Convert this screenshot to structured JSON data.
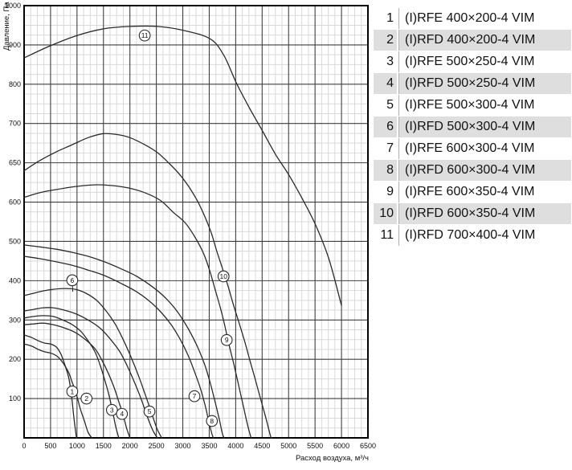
{
  "colors": {
    "curve": "#2b2b2b",
    "grid_major": "#3f3f3f",
    "grid_minor": "#d9d9d9",
    "axis_border": "#000000",
    "legend_alt_row": "#dedede",
    "legend_divider": "#b0b0b0",
    "text": "#111111",
    "marker_fill": "#ffffff"
  },
  "chart_data": {
    "type": "line",
    "title": "",
    "xlabel": "Расход воздуха, м³/ч",
    "ylabel": "Давление, Па",
    "xlim": [
      0,
      6500
    ],
    "x_ticks": [
      0,
      500,
      1000,
      1500,
      2000,
      2500,
      3000,
      3500,
      4000,
      4500,
      5000,
      5500,
      6000,
      6500
    ],
    "y_ticks": [
      1000,
      900,
      800,
      700,
      650,
      600,
      500,
      400,
      300,
      200,
      100,
      0
    ],
    "y_tick_labels_shown": [
      1000,
      900,
      800,
      700,
      650,
      600,
      500,
      400,
      300,
      200,
      100
    ],
    "grid": "major+minor, 3 minor lines between majors on both axes",
    "legend_position": "right table",
    "series": [
      {
        "id": 1,
        "model": "(I)RFE 400×200-4 VIM",
        "marker": "1",
        "marker_at": [
          910,
          118
        ],
        "points": [
          [
            0,
            262
          ],
          [
            150,
            255
          ],
          [
            270,
            247
          ],
          [
            390,
            241
          ],
          [
            500,
            239
          ],
          [
            610,
            231
          ],
          [
            700,
            212
          ],
          [
            770,
            186
          ],
          [
            840,
            155
          ],
          [
            880,
            124
          ],
          [
            910,
            92
          ],
          [
            940,
            53
          ],
          [
            970,
            20
          ],
          [
            990,
            0
          ]
        ]
      },
      {
        "id": 2,
        "model": "(I)RFD 400×200-4 VIM",
        "marker": "2",
        "marker_at": [
          1180,
          100
        ],
        "points": [
          [
            0,
            239
          ],
          [
            150,
            233
          ],
          [
            270,
            225
          ],
          [
            390,
            219
          ],
          [
            520,
            215
          ],
          [
            640,
            206
          ],
          [
            740,
            190
          ],
          [
            840,
            167
          ],
          [
            910,
            141
          ],
          [
            990,
            110
          ],
          [
            1060,
            75
          ],
          [
            1140,
            43
          ],
          [
            1210,
            14
          ],
          [
            1280,
            0
          ]
        ]
      },
      {
        "id": 3,
        "model": "(I)RFE 500×250-4 VIM",
        "marker": "3",
        "marker_at": [
          1660,
          71
        ],
        "points": [
          [
            0,
            305
          ],
          [
            180,
            309
          ],
          [
            360,
            311
          ],
          [
            550,
            309
          ],
          [
            730,
            300
          ],
          [
            910,
            288
          ],
          [
            1080,
            270
          ],
          [
            1210,
            247
          ],
          [
            1340,
            219
          ],
          [
            1440,
            184
          ],
          [
            1530,
            145
          ],
          [
            1610,
            106
          ],
          [
            1670,
            69
          ],
          [
            1730,
            30
          ],
          [
            1790,
            0
          ]
        ]
      },
      {
        "id": 4,
        "model": "(I)RFD 500×250-4 VIM",
        "marker": "4",
        "marker_at": [
          1850,
          61
        ],
        "points": [
          [
            0,
            288
          ],
          [
            180,
            290
          ],
          [
            360,
            292
          ],
          [
            550,
            288
          ],
          [
            760,
            280
          ],
          [
            970,
            268
          ],
          [
            1170,
            249
          ],
          [
            1340,
            227
          ],
          [
            1470,
            198
          ],
          [
            1590,
            165
          ],
          [
            1700,
            129
          ],
          [
            1790,
            92
          ],
          [
            1870,
            59
          ],
          [
            1940,
            24
          ],
          [
            2000,
            0
          ]
        ]
      },
      {
        "id": 5,
        "model": "(I)RFE 500×300-4 VIM",
        "marker": "5",
        "marker_at": [
          2370,
          67
        ],
        "points": [
          [
            0,
            323
          ],
          [
            180,
            327
          ],
          [
            360,
            331
          ],
          [
            550,
            331
          ],
          [
            760,
            325
          ],
          [
            990,
            315
          ],
          [
            1210,
            300
          ],
          [
            1430,
            280
          ],
          [
            1620,
            253
          ],
          [
            1810,
            219
          ],
          [
            1960,
            180
          ],
          [
            2100,
            137
          ],
          [
            2220,
            96
          ],
          [
            2320,
            57
          ],
          [
            2430,
            20
          ],
          [
            2520,
            0
          ]
        ]
      },
      {
        "id": 6,
        "model": "(I)RFD 500×300-4 VIM",
        "marker": "6",
        "marker_at": [
          910,
          401
        ],
        "leader_to": [
          920,
          372
        ],
        "points": [
          [
            0,
            362
          ],
          [
            180,
            368
          ],
          [
            360,
            374
          ],
          [
            550,
            378
          ],
          [
            760,
            380
          ],
          [
            970,
            378
          ],
          [
            1170,
            368
          ],
          [
            1370,
            350
          ],
          [
            1550,
            323
          ],
          [
            1720,
            290
          ],
          [
            1870,
            251
          ],
          [
            2020,
            206
          ],
          [
            2160,
            159
          ],
          [
            2280,
            114
          ],
          [
            2400,
            67
          ],
          [
            2510,
            24
          ],
          [
            2600,
            0
          ]
        ]
      },
      {
        "id": 7,
        "model": "(I)RFE 600×300-4 VIM",
        "marker": "7",
        "marker_at": [
          3220,
          106
        ],
        "points": [
          [
            0,
            462
          ],
          [
            300,
            456
          ],
          [
            610,
            448
          ],
          [
            910,
            439
          ],
          [
            1210,
            427
          ],
          [
            1520,
            413
          ],
          [
            1820,
            394
          ],
          [
            2100,
            374
          ],
          [
            2350,
            350
          ],
          [
            2580,
            321
          ],
          [
            2780,
            288
          ],
          [
            2950,
            251
          ],
          [
            3100,
            210
          ],
          [
            3220,
            169
          ],
          [
            3330,
            127
          ],
          [
            3420,
            84
          ],
          [
            3490,
            43
          ],
          [
            3550,
            10
          ],
          [
            3580,
            0
          ]
        ]
      },
      {
        "id": 8,
        "model": "(I)RFD 600×300-4 VIM",
        "marker": "8",
        "marker_at": [
          3550,
          43
        ],
        "points": [
          [
            0,
            491
          ],
          [
            300,
            486
          ],
          [
            610,
            480
          ],
          [
            910,
            472
          ],
          [
            1210,
            462
          ],
          [
            1520,
            448
          ],
          [
            1820,
            431
          ],
          [
            2130,
            411
          ],
          [
            2430,
            384
          ],
          [
            2690,
            354
          ],
          [
            2920,
            317
          ],
          [
            3110,
            276
          ],
          [
            3280,
            231
          ],
          [
            3420,
            184
          ],
          [
            3520,
            139
          ],
          [
            3610,
            92
          ],
          [
            3690,
            47
          ],
          [
            3750,
            10
          ],
          [
            3780,
            0
          ]
        ]
      },
      {
        "id": 9,
        "model": "(I)RFE 600×350-4 VIM",
        "marker": "9",
        "marker_at": [
          3830,
          249
        ],
        "points": [
          [
            0,
            606
          ],
          [
            300,
            612
          ],
          [
            610,
            616
          ],
          [
            990,
            620
          ],
          [
            1370,
            622
          ],
          [
            1670,
            621
          ],
          [
            1970,
            618
          ],
          [
            2280,
            612
          ],
          [
            2580,
            602
          ],
          [
            2820,
            574
          ],
          [
            3040,
            548
          ],
          [
            3230,
            511
          ],
          [
            3390,
            470
          ],
          [
            3510,
            425
          ],
          [
            3610,
            378
          ],
          [
            3710,
            331
          ],
          [
            3800,
            282
          ],
          [
            3870,
            239
          ],
          [
            3960,
            190
          ],
          [
            4050,
            137
          ],
          [
            4150,
            77
          ],
          [
            4230,
            30
          ],
          [
            4290,
            0
          ]
        ]
      },
      {
        "id": 10,
        "model": "(I)RFD 600×350-4 VIM",
        "marker": "10",
        "marker_at": [
          3770,
          411
        ],
        "points": [
          [
            0,
            640
          ],
          [
            300,
            653
          ],
          [
            610,
            664
          ],
          [
            910,
            673
          ],
          [
            1210,
            682
          ],
          [
            1490,
            687
          ],
          [
            1750,
            686
          ],
          [
            2000,
            682
          ],
          [
            2280,
            673
          ],
          [
            2520,
            663
          ],
          [
            2730,
            650
          ],
          [
            2930,
            636
          ],
          [
            3110,
            620
          ],
          [
            3280,
            601
          ],
          [
            3420,
            562
          ],
          [
            3540,
            521
          ],
          [
            3640,
            476
          ],
          [
            3750,
            431
          ],
          [
            3860,
            384
          ],
          [
            3960,
            337
          ],
          [
            4070,
            290
          ],
          [
            4180,
            241
          ],
          [
            4270,
            196
          ],
          [
            4370,
            149
          ],
          [
            4460,
            104
          ],
          [
            4570,
            51
          ],
          [
            4660,
            4
          ],
          [
            4680,
            0
          ]
        ]
      },
      {
        "id": 11,
        "model": "(I)RFD 700×400-4 VIM",
        "marker": "11",
        "marker_at": [
          2280,
          924
        ],
        "points": [
          [
            0,
            867
          ],
          [
            500,
            898
          ],
          [
            1000,
            924
          ],
          [
            1500,
            941
          ],
          [
            2000,
            947
          ],
          [
            2520,
            947
          ],
          [
            3010,
            937
          ],
          [
            3510,
            916
          ],
          [
            3770,
            875
          ],
          [
            4010,
            804
          ],
          [
            4250,
            742
          ],
          [
            4510,
            690
          ],
          [
            4750,
            661
          ],
          [
            5010,
            634
          ],
          [
            5260,
            604
          ],
          [
            5510,
            542
          ],
          [
            5760,
            456
          ],
          [
            6000,
            337
          ]
        ]
      }
    ]
  }
}
